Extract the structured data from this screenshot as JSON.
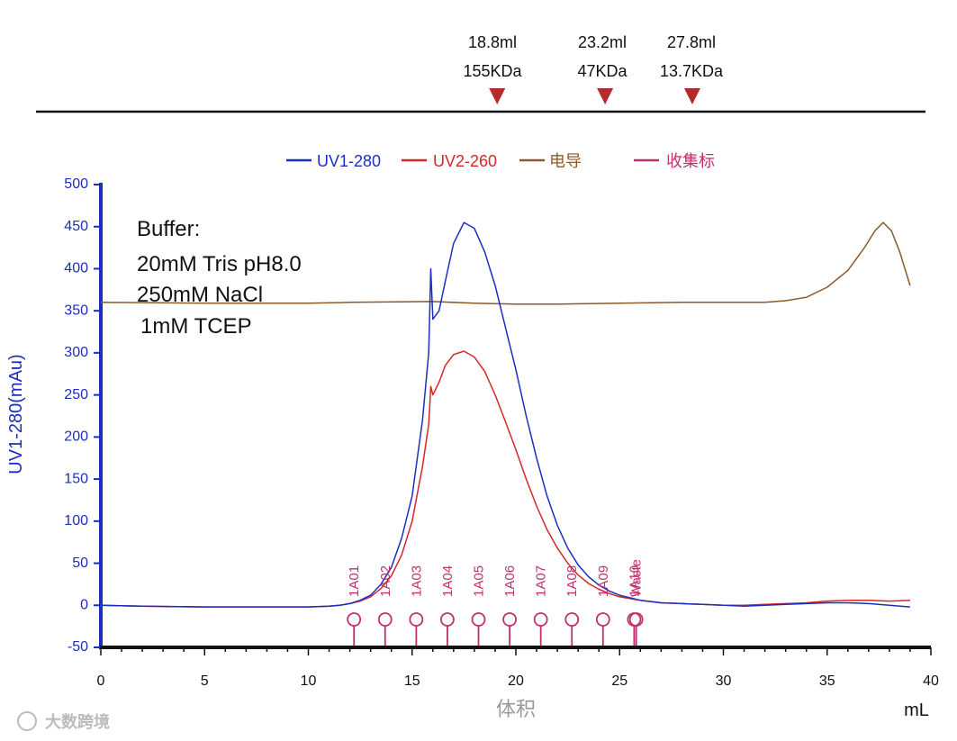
{
  "chart_data": {
    "type": "line",
    "xlabel": "体积",
    "x_unit": "mL",
    "ylabel": "UV1-280(mAu)",
    "xlim": [
      0,
      40
    ],
    "ylim": [
      -50,
      500
    ],
    "xticks": [
      0,
      5,
      10,
      15,
      20,
      25,
      30,
      35,
      40
    ],
    "yticks": [
      -50,
      0,
      50,
      100,
      150,
      200,
      250,
      300,
      350,
      400,
      450,
      500
    ],
    "legend": [
      {
        "name": "UV1-280",
        "color": "#1a2fbf"
      },
      {
        "name": "UV2-260",
        "color": "#d62728"
      },
      {
        "name": "电导",
        "color": "#8b5a2b"
      },
      {
        "name": "收集标",
        "color": "#c2306b"
      }
    ],
    "series": [
      {
        "name": "UV1-280",
        "color": "#1a2fbf",
        "points": [
          [
            0,
            0
          ],
          [
            2,
            -1
          ],
          [
            5,
            -2
          ],
          [
            8,
            -2
          ],
          [
            10,
            -2
          ],
          [
            11,
            -1
          ],
          [
            11.5,
            0
          ],
          [
            12,
            2
          ],
          [
            12.5,
            6
          ],
          [
            13,
            12
          ],
          [
            13.5,
            25
          ],
          [
            14,
            45
          ],
          [
            14.5,
            80
          ],
          [
            15,
            130
          ],
          [
            15.5,
            220
          ],
          [
            15.8,
            300
          ],
          [
            15.9,
            400
          ],
          [
            16,
            340
          ],
          [
            16.3,
            350
          ],
          [
            16.6,
            385
          ],
          [
            17,
            430
          ],
          [
            17.5,
            455
          ],
          [
            18,
            448
          ],
          [
            18.5,
            420
          ],
          [
            19,
            380
          ],
          [
            19.5,
            330
          ],
          [
            20,
            280
          ],
          [
            20.5,
            225
          ],
          [
            21,
            175
          ],
          [
            21.5,
            130
          ],
          [
            22,
            95
          ],
          [
            22.5,
            68
          ],
          [
            23,
            48
          ],
          [
            23.5,
            34
          ],
          [
            24,
            24
          ],
          [
            24.5,
            17
          ],
          [
            25,
            12
          ],
          [
            26,
            6
          ],
          [
            27,
            3
          ],
          [
            28,
            2
          ],
          [
            29,
            1
          ],
          [
            30,
            0
          ],
          [
            31,
            -1
          ],
          [
            32,
            0
          ],
          [
            33,
            1
          ],
          [
            34,
            2
          ],
          [
            35,
            3
          ],
          [
            36,
            3
          ],
          [
            37,
            2
          ],
          [
            38,
            0
          ],
          [
            39,
            -2
          ]
        ]
      },
      {
        "name": "UV2-260",
        "color": "#d62728",
        "points": [
          [
            0,
            0
          ],
          [
            2,
            -1
          ],
          [
            5,
            -2
          ],
          [
            8,
            -2
          ],
          [
            10,
            -2
          ],
          [
            11,
            -1
          ],
          [
            11.5,
            0
          ],
          [
            12,
            2
          ],
          [
            12.5,
            5
          ],
          [
            13,
            10
          ],
          [
            13.5,
            20
          ],
          [
            14,
            35
          ],
          [
            14.5,
            60
          ],
          [
            15,
            100
          ],
          [
            15.5,
            165
          ],
          [
            15.8,
            215
          ],
          [
            15.9,
            260
          ],
          [
            16,
            250
          ],
          [
            16.3,
            265
          ],
          [
            16.6,
            285
          ],
          [
            17,
            298
          ],
          [
            17.5,
            302
          ],
          [
            18,
            295
          ],
          [
            18.5,
            278
          ],
          [
            19,
            250
          ],
          [
            19.5,
            218
          ],
          [
            20,
            185
          ],
          [
            20.5,
            150
          ],
          [
            21,
            118
          ],
          [
            21.5,
            90
          ],
          [
            22,
            68
          ],
          [
            22.5,
            50
          ],
          [
            23,
            36
          ],
          [
            23.5,
            26
          ],
          [
            24,
            19
          ],
          [
            24.5,
            14
          ],
          [
            25,
            10
          ],
          [
            26,
            6
          ],
          [
            27,
            3
          ],
          [
            28,
            2
          ],
          [
            29,
            1
          ],
          [
            30,
            0
          ],
          [
            31,
            0
          ],
          [
            32,
            1
          ],
          [
            33,
            2
          ],
          [
            34,
            3
          ],
          [
            35,
            5
          ],
          [
            36,
            6
          ],
          [
            37,
            6
          ],
          [
            38,
            5
          ],
          [
            39,
            6
          ]
        ]
      },
      {
        "name": "电导",
        "color": "#8b5a2b",
        "points": [
          [
            0,
            360
          ],
          [
            5,
            359
          ],
          [
            10,
            359
          ],
          [
            12,
            360
          ],
          [
            16,
            361
          ],
          [
            18,
            359
          ],
          [
            20,
            358
          ],
          [
            22,
            358
          ],
          [
            25,
            359
          ],
          [
            28,
            360
          ],
          [
            30,
            360
          ],
          [
            32,
            360
          ],
          [
            33,
            362
          ],
          [
            34,
            366
          ],
          [
            35,
            378
          ],
          [
            36,
            398
          ],
          [
            36.8,
            425
          ],
          [
            37.3,
            445
          ],
          [
            37.7,
            455
          ],
          [
            38.1,
            445
          ],
          [
            38.5,
            420
          ],
          [
            39,
            380
          ]
        ]
      }
    ],
    "fractions": [
      {
        "label": "1A01",
        "x": 12.2
      },
      {
        "label": "1A02",
        "x": 13.7
      },
      {
        "label": "1A03",
        "x": 15.2
      },
      {
        "label": "1A04",
        "x": 16.7
      },
      {
        "label": "1A05",
        "x": 18.2
      },
      {
        "label": "1A06",
        "x": 19.7
      },
      {
        "label": "1A07",
        "x": 21.2
      },
      {
        "label": "1A08",
        "x": 22.7
      },
      {
        "label": "1A09",
        "x": 24.2
      },
      {
        "label": "1A10",
        "x": 25.7
      },
      {
        "label": "Waste",
        "x": 25.8
      }
    ],
    "markers": [
      {
        "volume": "18.8ml",
        "mw": "155KDa",
        "x": 19.1
      },
      {
        "volume": "23.2ml",
        "mw": "47KDa",
        "x": 24.3
      },
      {
        "volume": "27.8ml",
        "mw": "13.7KDa",
        "x": 28.5
      }
    ],
    "annotation": [
      "Buffer:",
      "20mM Tris pH8.0",
      "250mM NaCl",
      "1mM TCEP"
    ]
  },
  "watermark": "大数跨境"
}
